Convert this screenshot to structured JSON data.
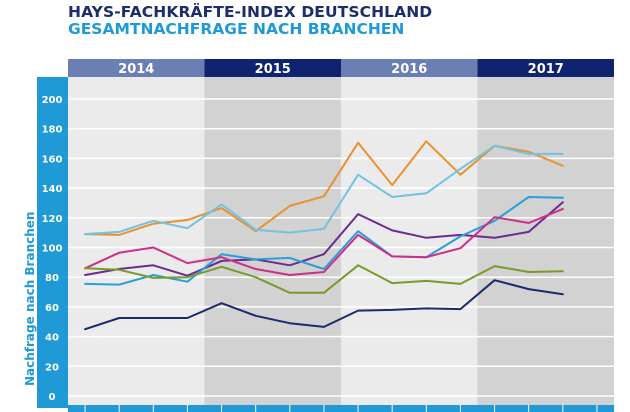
{
  "header": {
    "title": "HAYS-FACHKRÄFTE-INDEX DEUTSCHLAND",
    "subtitle": "GESAMTNACHFRAGE NACH BRANCHEN"
  },
  "colors": {
    "title": "#1d2d6b",
    "subtitle": "#1f9ad6",
    "axis_bar": "#1f9ad6",
    "year_light": "#6b7fb5",
    "year_dark": "#10236e",
    "band_light": "#ebebeb",
    "band_dark": "#d2d2d2"
  },
  "chart_data": {
    "type": "line",
    "title": "HAYS-FACHKRÄFTE-INDEX DEUTSCHLAND",
    "subtitle": "GESAMTNACHFRAGE NACH BRANCHEN",
    "xlabel": "",
    "ylabel": "Nachfrage nach Branchen",
    "ylim": [
      0,
      200
    ],
    "yticks": [
      0,
      20,
      40,
      60,
      80,
      100,
      120,
      140,
      160,
      180,
      200
    ],
    "grid": true,
    "legend": "none",
    "year_groups": [
      {
        "label": "2014",
        "quarters": 4,
        "shade": "light"
      },
      {
        "label": "2015",
        "quarters": 4,
        "shade": "dark"
      },
      {
        "label": "2016",
        "quarters": 4,
        "shade": "light"
      },
      {
        "label": "2017",
        "quarters": 4,
        "shade": "dark"
      }
    ],
    "x": [
      "Q1 2014",
      "Q2 2014",
      "Q3 2014",
      "Q4 2014",
      "Q1 2015",
      "Q2 2015",
      "Q3 2015",
      "Q4 2015",
      "Q1 2016",
      "Q2 2016",
      "Q3 2016",
      "Q4 2016",
      "Q1 2017",
      "Q2 2017",
      "Q3 2017"
    ],
    "series": [
      {
        "name": "orange",
        "color": "#e8922e",
        "values": [
          109,
          108.5,
          116,
          118.5,
          126.5,
          111,
          128,
          134.5,
          170.5,
          142,
          171.5,
          149,
          168.5,
          164.5,
          155
        ]
      },
      {
        "name": "light-blue",
        "color": "#72c2e4",
        "values": [
          109,
          110.5,
          118,
          113,
          129,
          112,
          110,
          112.5,
          149,
          134,
          136.5,
          153,
          168.5,
          163,
          163
        ]
      },
      {
        "name": "purple",
        "color": "#6b2c91",
        "values": [
          81.5,
          85.5,
          88,
          81,
          91,
          92,
          88,
          95.5,
          122.5,
          111.5,
          106.5,
          108.5,
          106.5,
          110.5,
          130.5
        ]
      },
      {
        "name": "blue",
        "color": "#2a9fd6",
        "values": [
          75.5,
          75,
          81.5,
          77,
          95.5,
          92,
          93,
          85.5,
          111,
          94,
          93.5,
          107.5,
          118,
          134,
          133.5
        ]
      },
      {
        "name": "magenta",
        "color": "#cc2f8a",
        "values": [
          86,
          96.5,
          100,
          89.5,
          93.5,
          85.5,
          81.5,
          83.5,
          108.5,
          94,
          93.5,
          99.5,
          120.5,
          116.5,
          126
        ]
      },
      {
        "name": "green",
        "color": "#7a9a2a",
        "values": [
          86,
          85,
          79.5,
          80,
          87,
          80,
          69.5,
          69.5,
          88,
          76,
          77.5,
          75.5,
          87.5,
          83.5,
          84
        ]
      },
      {
        "name": "navy",
        "color": "#1b2a6b",
        "values": [
          45,
          52.5,
          52.5,
          52.5,
          62.5,
          54,
          49,
          46.5,
          57.5,
          58,
          59,
          58.5,
          78,
          72,
          68.5
        ]
      }
    ]
  }
}
